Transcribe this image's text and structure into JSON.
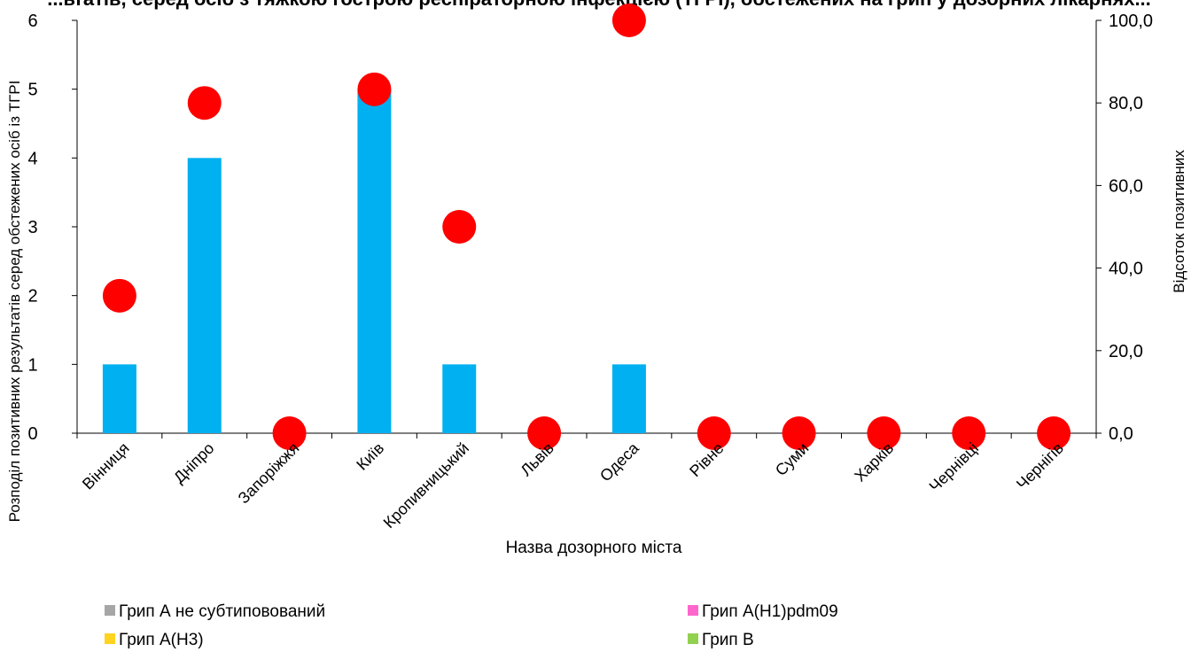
{
  "chart_data": {
    "type": "bar",
    "title": "...ьтатів, серед осіб з тяжкою гострою респіраторною інфекцією (ТГРІ), обстежених на грип у дозорних лікарнях...",
    "categories": [
      "Вінниця",
      "Дніпро",
      "Запоріжжя",
      "Київ",
      "Кропивницький",
      "Львів",
      "Одеса",
      "Рівне",
      "Суми",
      "Харків",
      "Чернівці",
      "Чернігів"
    ],
    "series": [
      {
        "name": "Грип А не субтиповований",
        "color": "#a6a6a6",
        "values": [
          0,
          0,
          0,
          0,
          0,
          0,
          0,
          0,
          0,
          0,
          0,
          0
        ]
      },
      {
        "name": "Грип А(H1)pdm09",
        "color": "#ff66cc",
        "values": [
          0,
          0,
          0,
          0,
          0,
          0,
          0,
          0,
          0,
          0,
          0,
          0
        ]
      },
      {
        "name": "Грип А(H3)",
        "color": "#ffd320",
        "values": [
          0,
          0,
          0,
          0,
          0,
          0,
          0,
          0,
          0,
          0,
          0,
          0
        ]
      },
      {
        "name": "Грип В",
        "color": "#92d050",
        "values": [
          1,
          4,
          0,
          5,
          1,
          0,
          1,
          0,
          0,
          0,
          0,
          0
        ]
      }
    ],
    "bar_color": "#00b0f0",
    "percent_series": {
      "axis": "right",
      "color": "#ff0000",
      "values": [
        33.3,
        80.0,
        0.0,
        83.3,
        50.0,
        0.0,
        100.0,
        0.0,
        0.0,
        0.0,
        0.0,
        0.0
      ]
    },
    "xlabel": "Назва  дозорного міста",
    "ylabel": "Розподіл позитивних результатів серед обстежених осіб із ТГРІ",
    "y2label": "Відсоток позитивних",
    "ylim": [
      0,
      6
    ],
    "y_ticks": [
      "0",
      "1",
      "2",
      "3",
      "4",
      "5",
      "6"
    ],
    "y2lim": [
      0,
      100
    ],
    "y2_ticks": [
      "0,0",
      "20,0",
      "40,0",
      "60,0",
      "80,0",
      "100,0"
    ],
    "grid": false,
    "legend_position": "bottom"
  }
}
